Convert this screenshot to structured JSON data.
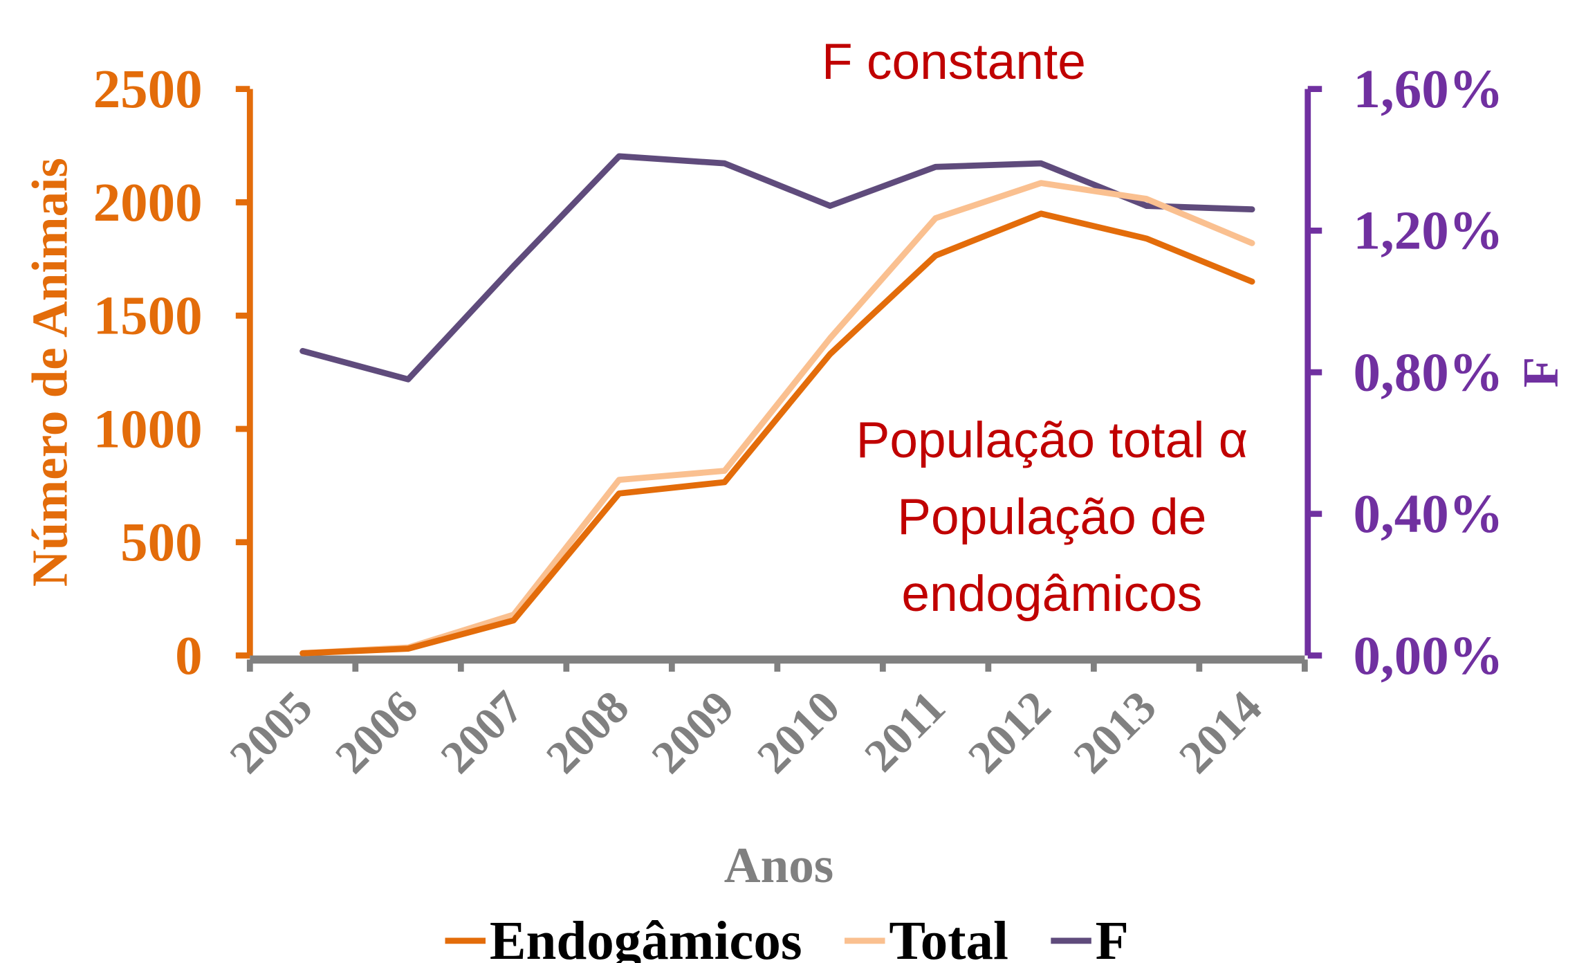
{
  "chart_data": {
    "type": "line",
    "xlabel": "Anos",
    "ylabel": "Número de Animais",
    "y2label": "F",
    "annotations": [
      "F constante",
      [
        "População total α",
        "População de",
        "endogâmicos"
      ]
    ],
    "categories": [
      "2005",
      "2006",
      "2007",
      "2008",
      "2009",
      "2010",
      "2011",
      "2012",
      "2013",
      "2014"
    ],
    "series": [
      {
        "name": "Endogâmicos",
        "color": "#e36c0a",
        "values": [
          10,
          30,
          155,
          715,
          765,
          1330,
          1765,
          1950,
          1840,
          1650
        ]
      },
      {
        "name": "Total",
        "color": "#fac090",
        "values": [
          10,
          35,
          180,
          775,
          815,
          1400,
          1930,
          2085,
          2015,
          1820
        ]
      },
      {
        "name": "F",
        "color": "#5f4b7c",
        "axis": "y2",
        "values": [
          0.86,
          0.78,
          1.1,
          1.41,
          1.39,
          1.27,
          1.38,
          1.39,
          1.27,
          1.26
        ]
      }
    ],
    "ylim": [
      0,
      2500
    ],
    "yticks": [
      0,
      500,
      1000,
      1500,
      2000,
      2500
    ],
    "y2lim": [
      0,
      1.6
    ],
    "y2ticks": [
      {
        "value": 0,
        "label": "0,00%"
      },
      {
        "value": 0.4,
        "label": "0,40%"
      },
      {
        "value": 0.8,
        "label": "0,80%"
      },
      {
        "value": 1.2,
        "label": "1,20%"
      },
      {
        "value": 1.6,
        "label": "1,60%"
      }
    ],
    "legend": "bottom",
    "grid": false
  }
}
